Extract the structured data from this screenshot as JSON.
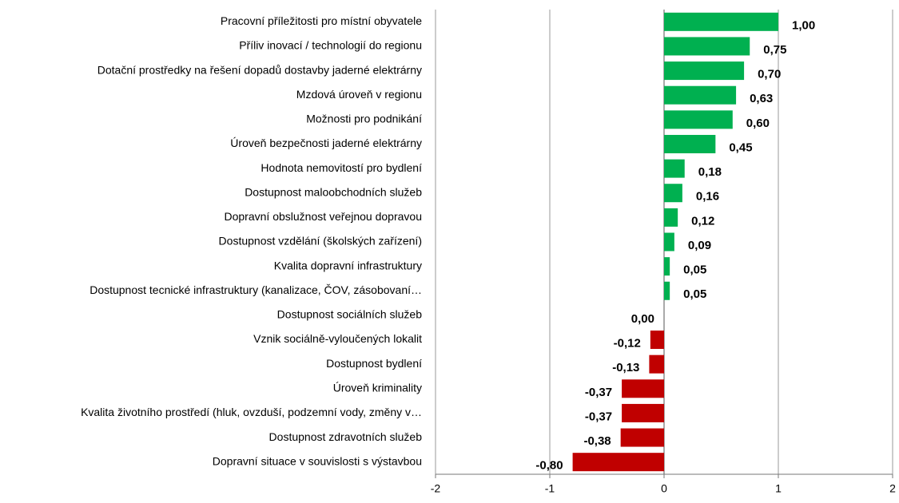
{
  "chart_data": {
    "type": "barh",
    "categories": [
      "Pracovní příležitosti pro místní obyvatele",
      "Příliv inovací / technologií do regionu",
      "Dotační prostředky na řešení dopadů dostavby jaderné elektrárny",
      "Mzdová úroveň v regionu",
      "Možnosti pro podnikání",
      "Úroveň bezpečnosti jaderné elektrárny",
      "Hodnota nemovitostí pro bydlení",
      "Dostupnost maloobchodních služeb",
      "Dopravní obslužnost veřejnou dopravou",
      "Dostupnost vzdělání (školských zařízení)",
      "Kvalita dopravní infrastruktury",
      "Dostupnost tecnické infrastruktury (kanalizace, ČOV, zásobovaní…",
      "Dostupnost sociálních služeb",
      "Vznik sociálně-vyloučených lokalit",
      "Dostupnost bydlení",
      "Úroveň kriminality",
      "Kvalita životního prostředí (hluk, ovzduší, podzemní vody, změny v…",
      "Dostupnost zdravotních služeb",
      "Dopravní situace v souvislosti s výstavbou"
    ],
    "values": [
      1.0,
      0.75,
      0.7,
      0.63,
      0.6,
      0.45,
      0.18,
      0.16,
      0.12,
      0.09,
      0.05,
      0.05,
      0.0,
      -0.12,
      -0.13,
      -0.37,
      -0.37,
      -0.38,
      -0.8
    ],
    "value_labels": [
      "1,00",
      "0,75",
      "0,70",
      "0,63",
      "0,60",
      "0,45",
      "0,18",
      "0,16",
      "0,12",
      "0,09",
      "0,05",
      "0,05",
      "0,00",
      "-0,12",
      "-0,13",
      "-0,37",
      "-0,37",
      "-0,38",
      "-0,80"
    ],
    "positive_color": "#00b050",
    "negative_color": "#c00000",
    "xlim": [
      -2,
      2
    ],
    "xticks": [
      -2,
      -1,
      0,
      1,
      2
    ],
    "grid": true
  }
}
